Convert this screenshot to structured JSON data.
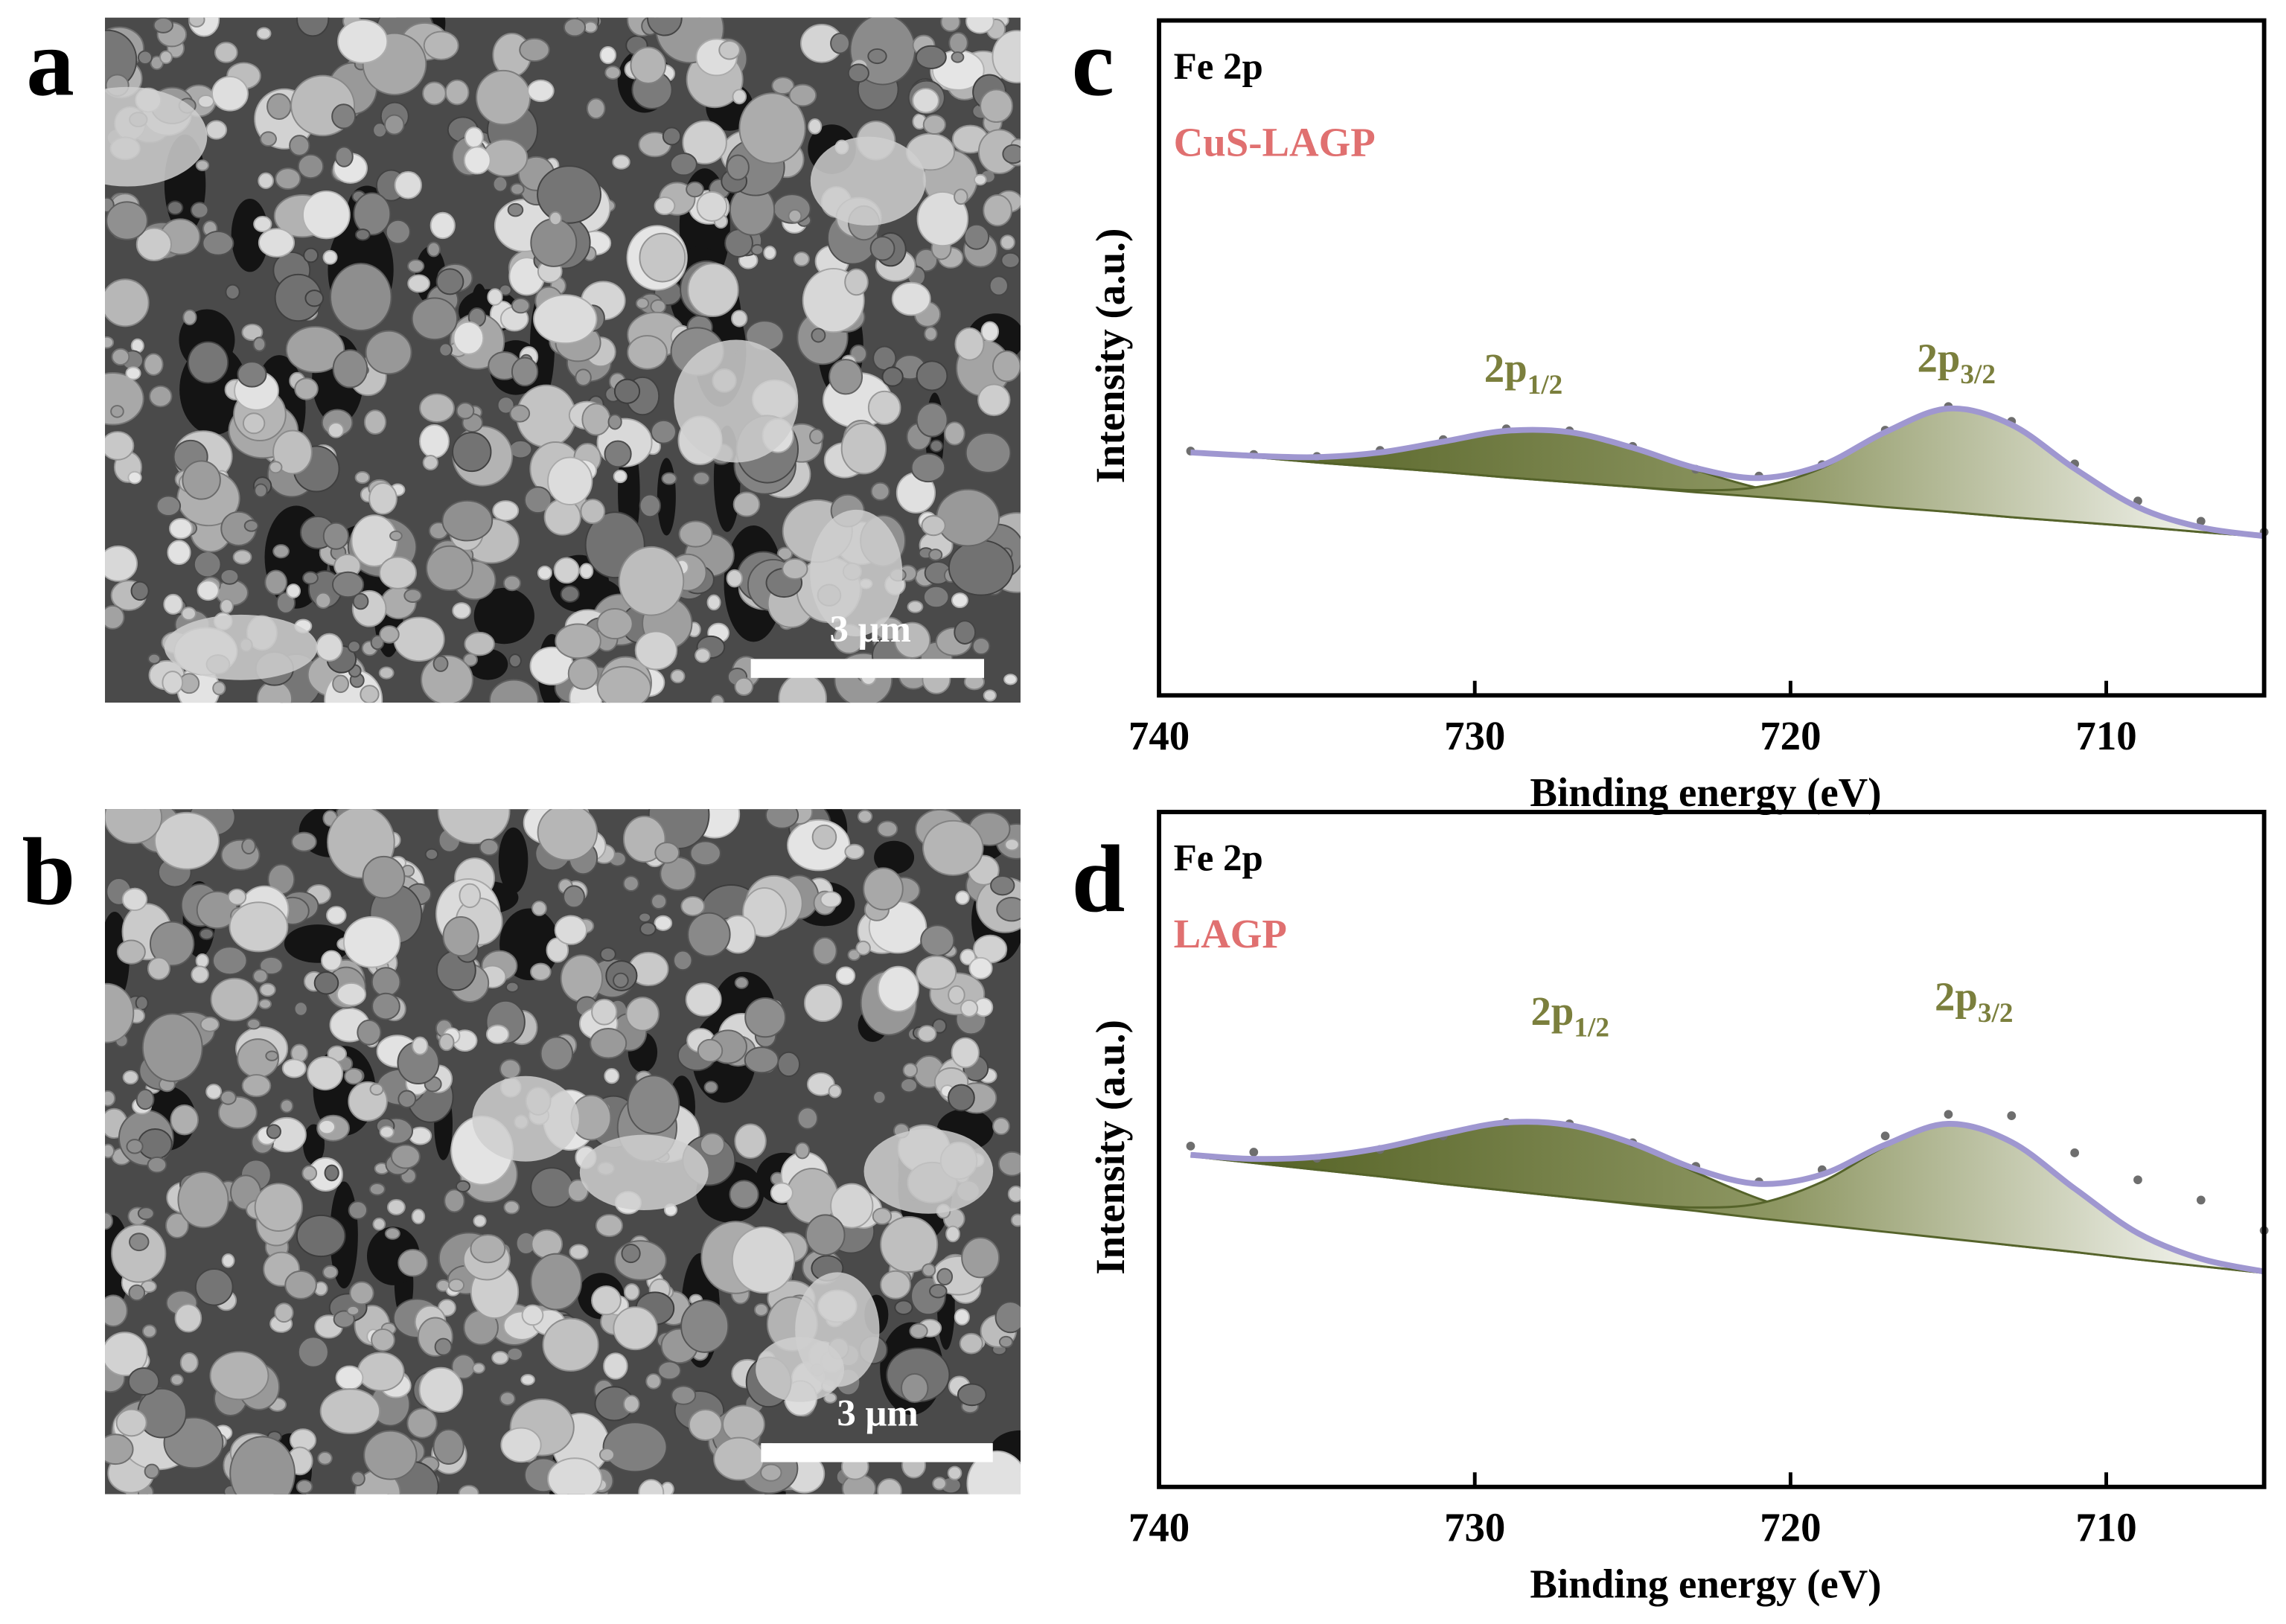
{
  "sem_panels": [
    {
      "label": "a",
      "scale_bar": "3 μm"
    },
    {
      "label": "b",
      "scale_bar": "3 μm"
    }
  ],
  "chart_data": [
    {
      "type": "line",
      "panel_label": "c",
      "title": "Fe 2p",
      "subtitle": "CuS-LAGP",
      "subtitle_color": "#e07070",
      "x_label": "Binding energy (eV)",
      "y_label": "Intensity (a.u.)",
      "xlim": [
        740,
        705
      ],
      "xticks": [
        740,
        730,
        720,
        710
      ],
      "ylim": [
        0,
        100
      ],
      "x": [
        739,
        737,
        735,
        733,
        731,
        729,
        727,
        725,
        723,
        721,
        719,
        717,
        715,
        713,
        711,
        709,
        707,
        705
      ],
      "series": [
        {
          "mark": "points",
          "color": "#6e6e6e",
          "values": [
            36.2,
            35.7,
            35.4,
            36.3,
            37.9,
            39.5,
            39.2,
            36.9,
            33.5,
            32.5,
            34.2,
            39.3,
            42.8,
            40.6,
            34.3,
            28.8,
            25.8,
            24.2
          ]
        },
        {
          "mark": "area",
          "color": "#55632a",
          "values": [
            36.0,
            35.5,
            35.3,
            36.0,
            37.6,
            39.2,
            39.0,
            36.7,
            33.4,
            30.7,
            29.0,
            28.0,
            27.2,
            26.4,
            25.7,
            25.0,
            24.2,
            23.5
          ]
        },
        {
          "mark": "area",
          "color": "#55632a",
          "values": [
            36.0,
            35.3,
            34.5,
            33.8,
            33.1,
            32.3,
            31.6,
            30.9,
            30.4,
            30.9,
            33.7,
            38.9,
            42.5,
            40.1,
            33.6,
            27.9,
            24.9,
            23.6
          ]
        },
        {
          "mark": "line",
          "color": "#55632a",
          "values": [
            36.0,
            35.3,
            34.5,
            33.8,
            33.1,
            32.3,
            31.6,
            30.9,
            30.1,
            29.4,
            28.7,
            27.9,
            27.2,
            26.4,
            25.7,
            25.0,
            24.2,
            23.5
          ]
        },
        {
          "mark": "line",
          "color": "#9f97d0",
          "values": [
            36.0,
            35.5,
            35.3,
            36.0,
            37.6,
            39.2,
            39.0,
            36.7,
            33.7,
            32.2,
            34.1,
            39.0,
            42.5,
            40.1,
            33.6,
            27.9,
            24.9,
            23.6
          ]
        }
      ],
      "annotation_color": "#7b7f3d",
      "annotations": [
        {
          "text": "2p",
          "subscript": "1/2"
        },
        {
          "text": "2p",
          "subscript": "3/2"
        }
      ]
    },
    {
      "type": "line",
      "panel_label": "d",
      "title": "Fe 2p",
      "subtitle": "LAGP",
      "subtitle_color": "#e07070",
      "x_label": "Binding energy (eV)",
      "y_label": "Intensity (a.u.)",
      "xlim": [
        740,
        705
      ],
      "xticks": [
        740,
        730,
        720,
        710
      ],
      "ylim": [
        0,
        100
      ],
      "x": [
        739,
        737,
        735,
        733,
        731,
        729,
        727,
        725,
        723,
        721,
        719,
        717,
        715,
        713,
        711,
        709,
        707,
        705
      ],
      "series": [
        {
          "mark": "points",
          "color": "#6e6e6e",
          "values": [
            50.5,
            49.6,
            48.7,
            50.0,
            52.0,
            54.0,
            53.8,
            51.0,
            47.5,
            45.2,
            47.0,
            52.0,
            55.2,
            55.0,
            49.5,
            45.5,
            42.5,
            38.0
          ]
        },
        {
          "mark": "area",
          "color": "#55632a",
          "values": [
            49.2,
            48.6,
            48.9,
            50.2,
            52.3,
            54.0,
            53.6,
            50.8,
            46.6,
            42.7,
            39.9,
            38.1,
            36.9,
            35.8,
            34.8,
            33.7,
            32.7,
            31.7
          ]
        },
        {
          "mark": "area",
          "color": "#55632a",
          "values": [
            49.0,
            48.0,
            47.0,
            46.0,
            44.9,
            43.9,
            42.9,
            42.0,
            41.4,
            42.0,
            45.2,
            50.4,
            53.7,
            51.1,
            44.2,
            37.6,
            33.8,
            31.9
          ]
        },
        {
          "mark": "line",
          "color": "#55632a",
          "values": [
            49.0,
            48.0,
            47.0,
            46.0,
            44.9,
            43.9,
            42.9,
            41.9,
            40.9,
            39.8,
            38.8,
            37.8,
            36.8,
            35.8,
            34.8,
            33.7,
            32.7,
            31.7
          ]
        },
        {
          "mark": "line",
          "color": "#9f97d0",
          "values": [
            49.2,
            48.6,
            48.9,
            50.2,
            52.3,
            54.0,
            53.6,
            50.9,
            47.1,
            44.9,
            46.3,
            50.7,
            53.8,
            51.1,
            44.2,
            37.6,
            33.8,
            31.9
          ]
        }
      ],
      "annotation_color": "#7b7f3d",
      "annotations": [
        {
          "text": "2p",
          "subscript": "1/2"
        },
        {
          "text": "2p",
          "subscript": "3/2"
        }
      ]
    }
  ]
}
